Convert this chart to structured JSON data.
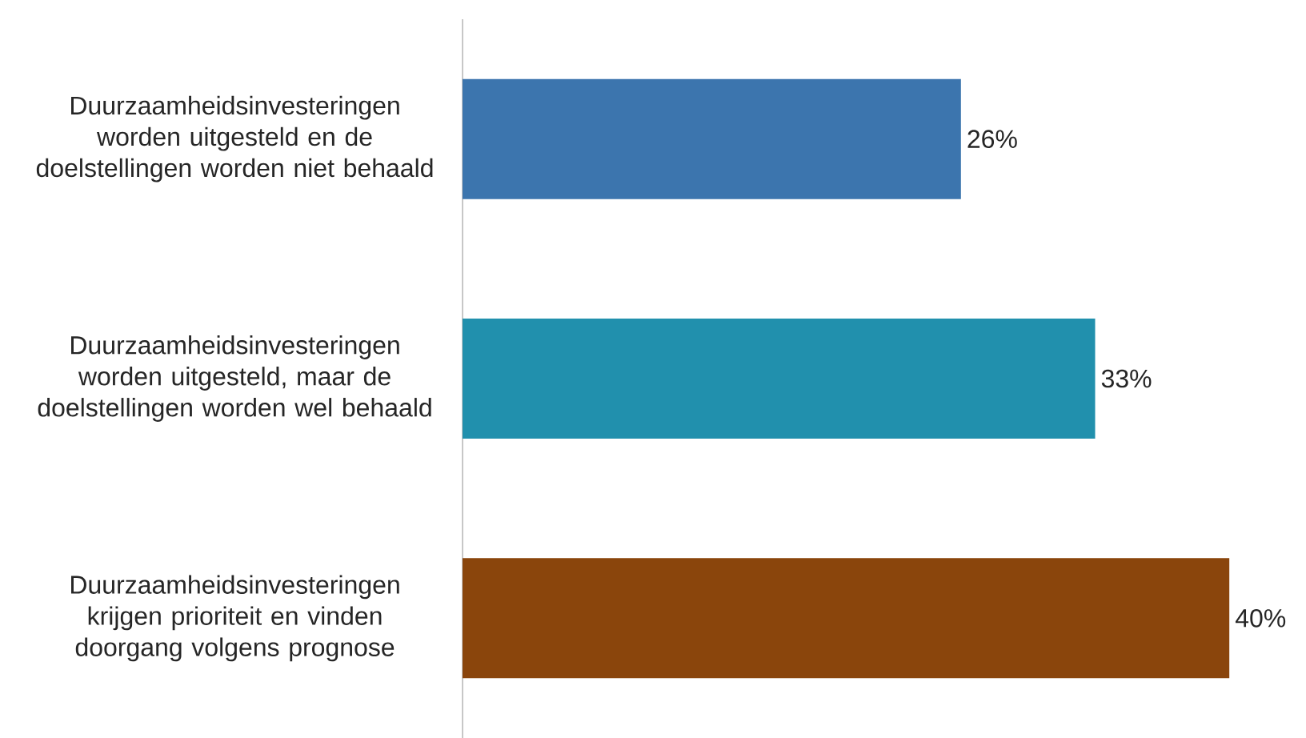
{
  "chart_data": {
    "type": "bar",
    "orientation": "horizontal",
    "categories": [
      "Duurzaamheidsinvesteringen worden uitgesteld en de doelstellingen worden niet behaald",
      "Duurzaamheidsinvesteringen worden uitgesteld, maar de doelstellingen worden wel behaald",
      "Duurzaamheidsinvesteringen krijgen prioriteit en vinden doorgang volgens prognose"
    ],
    "values": [
      26,
      33,
      40
    ],
    "colors": [
      "#3c75ae",
      "#2190ad",
      "#8a450c"
    ],
    "value_labels": [
      "26%",
      "33%",
      "40%"
    ]
  }
}
